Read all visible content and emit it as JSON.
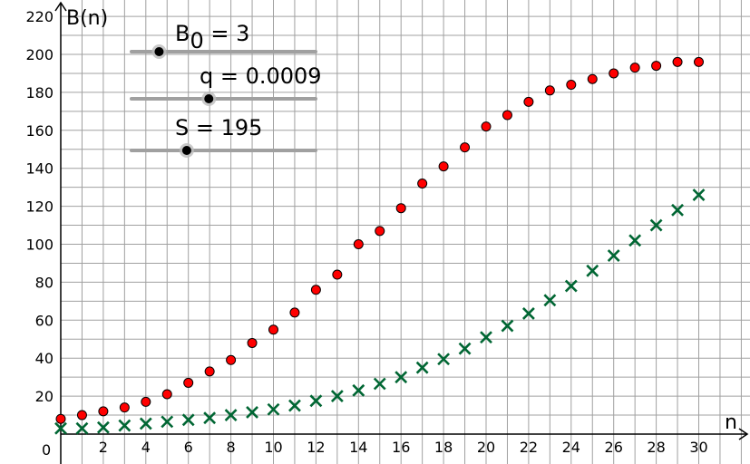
{
  "chart_data": {
    "type": "scatter",
    "title": "",
    "xlabel": "n",
    "ylabel": "B(n)",
    "origin_label": "0",
    "xlim": [
      0,
      31.3
    ],
    "ylim": [
      -4,
      221.5
    ],
    "grid": true,
    "x_ticks": [
      2,
      4,
      6,
      8,
      10,
      12,
      14,
      16,
      18,
      20,
      22,
      24,
      26,
      28,
      30
    ],
    "y_ticks": [
      20,
      40,
      60,
      80,
      100,
      120,
      140,
      160,
      180,
      200,
      220
    ],
    "x_tick_labels": [
      "2",
      "4",
      "6",
      "8",
      "10",
      "12",
      "14",
      "16",
      "18",
      "20",
      "22",
      "24",
      "26",
      "28",
      "30"
    ],
    "y_tick_labels": [
      "20",
      "40",
      "60",
      "80",
      "100",
      "120",
      "140",
      "160",
      "180",
      "200",
      "220"
    ],
    "series": [
      {
        "marker": "dot",
        "color": "#ff0000",
        "x": [
          0,
          1,
          2,
          3,
          4,
          5,
          6,
          7,
          8,
          9,
          10,
          11,
          12,
          13,
          14,
          15,
          16,
          17,
          18,
          19,
          20,
          21,
          22,
          23,
          24,
          25,
          26,
          27,
          28,
          29,
          30
        ],
        "y": [
          8,
          10,
          12,
          14,
          17,
          21,
          27,
          33,
          39,
          48,
          55,
          64,
          76,
          84,
          100,
          107,
          119,
          132,
          141,
          151,
          162,
          168,
          175,
          181,
          184,
          187,
          190,
          193,
          194,
          196,
          196
        ]
      },
      {
        "marker": "cross",
        "color": "#006633",
        "x": [
          0,
          1,
          2,
          3,
          4,
          5,
          6,
          7,
          8,
          9,
          10,
          11,
          12,
          13,
          14,
          15,
          16,
          17,
          18,
          19,
          20,
          21,
          22,
          23,
          24,
          25,
          26,
          27,
          28,
          29,
          30
        ],
        "y": [
          3,
          3,
          3.5,
          4.5,
          5.5,
          6.5,
          7.5,
          8.5,
          10,
          11.5,
          13,
          15,
          17.5,
          20,
          23,
          26.5,
          30,
          35,
          39.5,
          45,
          51,
          57,
          63.5,
          70.5,
          78,
          86,
          94,
          102,
          110,
          118,
          126
        ]
      }
    ]
  },
  "sliders": [
    {
      "label_main": "B",
      "label_sub": "0",
      "label_rest": " = 3",
      "value": 3,
      "position": 0.15
    },
    {
      "label_main": "q",
      "label_sub": "",
      "label_rest": " = 0.0009",
      "value": 0.0009,
      "position": 0.42
    },
    {
      "label_main": "S",
      "label_sub": "",
      "label_rest": " = 195",
      "value": 195,
      "position": 0.3
    }
  ],
  "colors": {
    "grid": "#a0a0a0",
    "axis": "#000000",
    "slider_track": "#a0a0a0",
    "slider_knob": "#000000"
  }
}
